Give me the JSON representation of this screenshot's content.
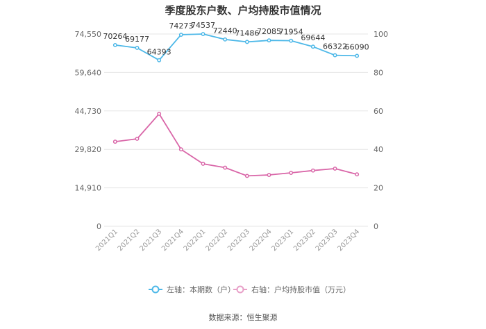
{
  "chart_data": {
    "type": "line",
    "title": "季度股东户数、户均持股市值情况",
    "categories": [
      "2021Q1",
      "2021Q2",
      "2021Q3",
      "2021Q4",
      "2022Q1",
      "2022Q2",
      "2022Q3",
      "2022Q4",
      "2023Q1",
      "2023Q2",
      "2023Q3",
      "2023Q4"
    ],
    "left_axis": {
      "ticks": [
        "0",
        "14,910",
        "29,820",
        "44,730",
        "59,640",
        "74,550"
      ],
      "ylim": [
        0,
        74550
      ]
    },
    "right_axis": {
      "ticks": [
        "0",
        "20",
        "40",
        "60",
        "80",
        "100"
      ],
      "ylim": [
        0,
        100
      ]
    },
    "grid": "horizontal",
    "legend_position": "bottom",
    "series": [
      {
        "name": "左轴：本期数（户）",
        "axis": "left",
        "color": "#4db8e8",
        "values": [
          70264,
          69177,
          64393,
          74273,
          74537,
          72440,
          71486,
          72085,
          71954,
          69644,
          66322,
          66090
        ],
        "labels": [
          "70264",
          "69177",
          "64393",
          "74273",
          "74537",
          "72440",
          "71486",
          "72085",
          "71954",
          "69644",
          "66322",
          "66090"
        ]
      },
      {
        "name": "右轴：户均持股市值（万元）",
        "axis": "right",
        "color": "#d966a8",
        "values": [
          44.0,
          45.5,
          58.5,
          40.0,
          32.5,
          30.5,
          26.2,
          26.7,
          27.8,
          29.0,
          30.0,
          27.0
        ]
      }
    ],
    "source": "数据来源：恒生聚源"
  }
}
